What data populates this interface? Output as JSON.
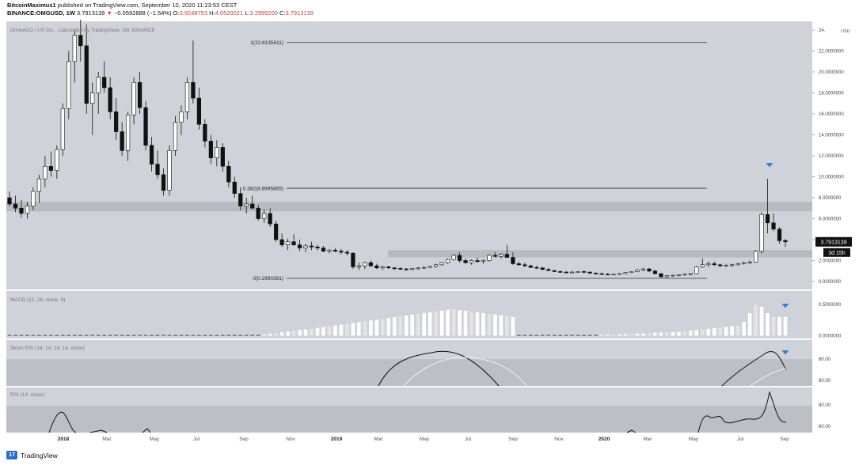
{
  "header": {
    "publisher": "BitcoinMaximus1",
    "published_text": "published on TradingView.com, September 10, 2020 11:23:53 CEST",
    "symbol": "BINANCE:OMGUSD, 1W",
    "last": "3.7913139",
    "change_arrow": "▼",
    "change": "−0.0592888 (−1.54%)",
    "o_label": "O:",
    "o_value": "3.9248753",
    "h_label": "H:",
    "h_value": "4.0520021",
    "l_label": "L:",
    "l_value": "3.2999200",
    "c_label": "C:",
    "c_value": "3.7913139"
  },
  "footer": {
    "brand": "TradingView",
    "logo_text": "17"
  },
  "colors": {
    "panel_bg": "#cfd2d8",
    "up": "#ffffff",
    "down": "#111111",
    "marker": "#2f7fd8",
    "band": "#b4b7bd"
  },
  "chart_data": [
    {
      "type": "candlestick",
      "title": "OmiseGO / US Do... Calculated by TradingView, 1W, BINANCE",
      "ylabel": "USD",
      "ylim": [
        0,
        24
      ],
      "y_ticks": [
        "0.0000000",
        "2.0000000",
        "4.0000000",
        "6.0000000",
        "8.0000000",
        "10.0000000",
        "12.0000000",
        "14.0000000",
        "16.0000000",
        "18.0000000",
        "20.0000000",
        "22.0000000",
        "24."
      ],
      "x_tick_labels": [
        "2018",
        "Mar",
        "May",
        "Jul",
        "Sep",
        "Nov",
        "2019",
        "Mar",
        "May",
        "Jul",
        "Sep",
        "Nov",
        "2020",
        "Mar",
        "May",
        "Jul",
        "Sep"
      ],
      "last_price_label": "3.7913139",
      "countdown_label": "3d 15h",
      "fib_levels": [
        {
          "label": "1(22.8135611)",
          "value": 22.81
        },
        {
          "label": "0.382(8.8995865)",
          "value": 8.9
        },
        {
          "label": "0(0.2990391)",
          "value": 0.3
        }
      ],
      "zones": [
        [
          6.7,
          7.6
        ],
        [
          2.3,
          3.0
        ]
      ],
      "candles": [
        [
          8.0,
          8.6,
          7.2,
          7.4
        ],
        [
          7.4,
          8.2,
          6.6,
          7.0
        ],
        [
          7.0,
          7.8,
          6.1,
          6.5
        ],
        [
          6.5,
          7.6,
          6.0,
          7.2
        ],
        [
          7.2,
          9.0,
          6.8,
          8.6
        ],
        [
          8.6,
          10.2,
          7.5,
          9.8
        ],
        [
          9.8,
          12.0,
          9.0,
          11.0
        ],
        [
          11.0,
          12.4,
          10.0,
          10.6
        ],
        [
          10.6,
          13.0,
          9.8,
          12.6
        ],
        [
          12.6,
          17.0,
          12.0,
          16.5
        ],
        [
          16.5,
          22.0,
          15.5,
          21.0
        ],
        [
          21.0,
          24.0,
          19.0,
          23.5
        ],
        [
          23.5,
          25.0,
          21.0,
          22.5
        ],
        [
          22.5,
          24.5,
          16.0,
          17.0
        ],
        [
          17.0,
          19.0,
          14.0,
          18.0
        ],
        [
          18.0,
          20.0,
          16.0,
          19.5
        ],
        [
          19.5,
          21.0,
          18.0,
          18.5
        ],
        [
          18.5,
          19.5,
          15.5,
          16.2
        ],
        [
          16.2,
          17.5,
          13.5,
          14.3
        ],
        [
          14.3,
          15.2,
          12.0,
          12.5
        ],
        [
          12.5,
          16.2,
          11.5,
          15.9
        ],
        [
          15.9,
          19.5,
          15.0,
          19.0
        ],
        [
          19.0,
          20.0,
          16.0,
          16.6
        ],
        [
          16.6,
          17.2,
          12.5,
          13.0
        ],
        [
          13.0,
          13.8,
          10.5,
          11.2
        ],
        [
          11.2,
          12.5,
          9.8,
          10.2
        ],
        [
          10.2,
          10.8,
          8.2,
          8.7
        ],
        [
          8.7,
          13.0,
          8.2,
          12.5
        ],
        [
          12.5,
          15.8,
          12.0,
          15.2
        ],
        [
          15.2,
          16.8,
          14.0,
          16.2
        ],
        [
          16.2,
          19.5,
          15.5,
          19.0
        ],
        [
          19.0,
          23.0,
          17.0,
          17.5
        ],
        [
          17.5,
          18.5,
          14.5,
          15.0
        ],
        [
          15.0,
          15.5,
          12.8,
          13.4
        ],
        [
          13.4,
          14.0,
          11.2,
          11.8
        ],
        [
          11.8,
          13.5,
          11.0,
          12.8
        ],
        [
          12.8,
          13.2,
          10.5,
          11.0
        ],
        [
          11.0,
          11.5,
          9.0,
          9.5
        ],
        [
          9.5,
          10.0,
          8.0,
          8.4
        ],
        [
          8.4,
          9.0,
          6.8,
          7.2
        ],
        [
          7.2,
          8.0,
          6.5,
          7.4
        ],
        [
          7.4,
          8.2,
          6.9,
          7.0
        ],
        [
          7.0,
          7.3,
          5.8,
          6.0
        ],
        [
          6.0,
          6.9,
          5.6,
          6.5
        ],
        [
          6.5,
          7.0,
          5.2,
          5.5
        ],
        [
          5.5,
          5.8,
          3.8,
          4.0
        ],
        [
          4.0,
          4.6,
          3.3,
          3.5
        ],
        [
          3.5,
          4.1,
          3.0,
          3.8
        ],
        [
          3.8,
          4.5,
          3.4,
          3.5
        ],
        [
          3.5,
          4.0,
          2.9,
          3.2
        ],
        [
          3.2,
          3.6,
          2.8,
          3.4
        ],
        [
          3.4,
          3.8,
          3.0,
          3.3
        ],
        [
          3.3,
          3.5,
          3.0,
          3.2
        ],
        [
          3.2,
          3.4,
          2.8,
          2.9
        ],
        [
          2.9,
          3.1,
          2.7,
          3.0
        ],
        [
          3.0,
          3.2,
          2.8,
          2.9
        ],
        [
          2.9,
          3.1,
          2.6,
          2.8
        ],
        [
          2.8,
          3.0,
          2.5,
          2.7
        ],
        [
          2.7,
          2.8,
          1.2,
          1.4
        ],
        [
          1.4,
          1.8,
          1.1,
          1.5
        ],
        [
          1.5,
          1.9,
          1.2,
          1.8
        ],
        [
          1.8,
          2.0,
          1.4,
          1.5
        ],
        [
          1.5,
          1.7,
          1.2,
          1.3
        ],
        [
          1.3,
          1.5,
          1.1,
          1.4
        ],
        [
          1.4,
          1.5,
          1.2,
          1.3
        ],
        [
          1.3,
          1.4,
          1.1,
          1.25
        ],
        [
          1.25,
          1.35,
          1.1,
          1.2
        ],
        [
          1.2,
          1.3,
          1.05,
          1.15
        ],
        [
          1.15,
          1.3,
          1.05,
          1.25
        ],
        [
          1.25,
          1.35,
          1.1,
          1.3
        ],
        [
          1.3,
          1.45,
          1.2,
          1.35
        ],
        [
          1.35,
          1.5,
          1.25,
          1.45
        ],
        [
          1.45,
          1.7,
          1.3,
          1.6
        ],
        [
          1.6,
          1.9,
          1.5,
          1.8
        ],
        [
          1.8,
          2.2,
          1.7,
          2.1
        ],
        [
          2.1,
          2.6,
          2.0,
          2.5
        ],
        [
          2.5,
          2.8,
          1.8,
          2.0
        ],
        [
          2.0,
          2.2,
          1.7,
          1.8
        ],
        [
          1.8,
          2.1,
          1.6,
          2.0
        ],
        [
          2.0,
          2.3,
          1.8,
          1.9
        ],
        [
          1.9,
          2.1,
          1.7,
          2.0
        ],
        [
          2.0,
          2.6,
          1.9,
          2.5
        ],
        [
          2.5,
          2.8,
          2.3,
          2.4
        ],
        [
          2.4,
          2.7,
          2.2,
          2.6
        ],
        [
          2.6,
          3.5,
          2.4,
          2.3
        ],
        [
          2.3,
          2.8,
          1.6,
          1.7
        ],
        [
          1.7,
          1.9,
          1.5,
          1.6
        ],
        [
          1.6,
          1.8,
          1.4,
          1.5
        ],
        [
          1.5,
          1.6,
          1.3,
          1.35
        ],
        [
          1.35,
          1.5,
          1.2,
          1.3
        ],
        [
          1.3,
          1.4,
          1.1,
          1.15
        ],
        [
          1.15,
          1.3,
          1.0,
          1.05
        ],
        [
          1.05,
          1.1,
          0.9,
          0.95
        ],
        [
          0.95,
          1.05,
          0.85,
          0.9
        ],
        [
          0.9,
          1.0,
          0.8,
          0.85
        ],
        [
          0.85,
          1.0,
          0.8,
          0.9
        ],
        [
          0.9,
          1.0,
          0.85,
          0.95
        ],
        [
          0.95,
          1.05,
          0.85,
          0.9
        ],
        [
          0.9,
          0.95,
          0.75,
          0.8
        ],
        [
          0.8,
          0.9,
          0.7,
          0.75
        ],
        [
          0.75,
          0.85,
          0.65,
          0.7
        ],
        [
          0.7,
          0.8,
          0.6,
          0.65
        ],
        [
          0.65,
          0.75,
          0.6,
          0.7
        ],
        [
          0.7,
          0.8,
          0.65,
          0.75
        ],
        [
          0.75,
          0.9,
          0.7,
          0.85
        ],
        [
          0.85,
          1.0,
          0.8,
          0.95
        ],
        [
          0.95,
          1.2,
          0.9,
          1.1
        ],
        [
          1.1,
          1.3,
          1.0,
          1.2
        ],
        [
          1.2,
          1.3,
          0.9,
          1.0
        ],
        [
          1.0,
          1.1,
          0.7,
          0.75
        ],
        [
          0.75,
          0.8,
          0.4,
          0.45
        ],
        [
          0.45,
          0.6,
          0.35,
          0.55
        ],
        [
          0.55,
          0.65,
          0.45,
          0.6
        ],
        [
          0.6,
          0.7,
          0.5,
          0.65
        ],
        [
          0.65,
          0.75,
          0.55,
          0.7
        ],
        [
          0.7,
          0.8,
          0.6,
          0.75
        ],
        [
          0.75,
          1.5,
          0.7,
          1.4
        ],
        [
          1.4,
          2.2,
          1.3,
          1.6
        ],
        [
          1.6,
          1.9,
          1.4,
          1.7
        ],
        [
          1.7,
          1.9,
          1.5,
          1.6
        ],
        [
          1.6,
          1.7,
          1.4,
          1.5
        ],
        [
          1.5,
          1.7,
          1.4,
          1.55
        ],
        [
          1.55,
          1.7,
          1.4,
          1.6
        ],
        [
          1.6,
          1.8,
          1.5,
          1.7
        ],
        [
          1.7,
          1.9,
          1.6,
          1.8
        ],
        [
          1.8,
          2.0,
          1.7,
          1.85
        ],
        [
          1.85,
          3.0,
          1.8,
          2.9
        ],
        [
          2.9,
          6.6,
          2.7,
          6.4
        ],
        [
          6.4,
          9.8,
          4.6,
          5.6
        ],
        [
          5.6,
          6.5,
          4.8,
          5.0
        ],
        [
          5.0,
          5.2,
          3.6,
          3.9
        ],
        [
          3.92,
          4.05,
          3.3,
          3.79
        ]
      ]
    },
    {
      "type": "bar",
      "title": "MACD (12, 26, close, 9)",
      "y_ticks": [
        "0.0000000",
        "0.5000000"
      ]
    },
    {
      "type": "line",
      "title": "Stoch RSI (14, 14, 14, 14, close)",
      "y_ticks": [
        "60.00",
        "80.00"
      ]
    },
    {
      "type": "line",
      "title": "RSI (14, close)",
      "y_ticks": [
        "60.00",
        "80.00"
      ]
    }
  ]
}
